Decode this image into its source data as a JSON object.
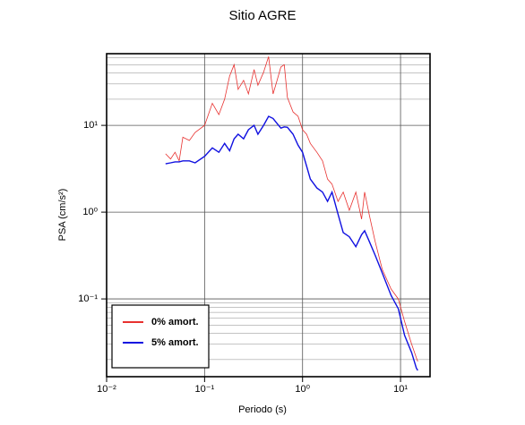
{
  "chart_data": {
    "type": "line",
    "title": "Sitio AGRE",
    "xlabel": "Periodo (s)",
    "ylabel": "PSA (cm/s²)",
    "xscale": "log",
    "yscale": "log",
    "grid": true,
    "legend": "lower left",
    "xlim": [
      0.01,
      20
    ],
    "ylim": [
      0.0127,
      67
    ],
    "xticks": [
      {
        "value": 0.01,
        "label": "10⁻²"
      },
      {
        "value": 0.1,
        "label": "10⁻¹"
      },
      {
        "value": 1,
        "label": "10⁰"
      },
      {
        "value": 10,
        "label": "10¹"
      }
    ],
    "yticks": [
      {
        "value": 0.1,
        "label": "10⁻¹"
      },
      {
        "value": 1,
        "label": "10⁰"
      },
      {
        "value": 10,
        "label": "10¹"
      }
    ],
    "x": [
      0.04,
      0.045,
      0.05,
      0.055,
      0.06,
      0.07,
      0.08,
      0.1,
      0.12,
      0.14,
      0.16,
      0.18,
      0.2,
      0.22,
      0.25,
      0.28,
      0.32,
      0.35,
      0.4,
      0.45,
      0.5,
      0.55,
      0.6,
      0.65,
      0.7,
      0.8,
      0.9,
      1.0,
      1.1,
      1.2,
      1.4,
      1.6,
      1.8,
      2.0,
      2.3,
      2.6,
      3.0,
      3.5,
      4.0,
      4.3,
      4.8,
      5.5,
      6.5,
      8,
      9.5,
      11,
      13,
      14.5,
      15
    ],
    "series": [
      {
        "name": "0% amort.",
        "color": "#e8312f",
        "width": 0.8,
        "values": [
          4.7,
          4.1,
          4.9,
          3.9,
          7.3,
          6.7,
          8.3,
          10,
          18,
          13.3,
          20,
          37,
          50,
          26,
          33,
          23,
          44,
          29,
          41,
          62,
          23,
          33,
          47,
          50,
          21,
          14.3,
          12.7,
          8.9,
          7.9,
          6.2,
          4.9,
          3.9,
          2.4,
          2.1,
          1.33,
          1.7,
          1.05,
          1.7,
          0.83,
          1.7,
          0.93,
          0.46,
          0.22,
          0.13,
          0.1,
          0.055,
          0.03,
          0.021,
          0.019
        ]
      },
      {
        "name": "5% amort.",
        "color": "#1010e0",
        "width": 1.4,
        "values": [
          3.6,
          3.7,
          3.8,
          3.8,
          3.9,
          3.9,
          3.7,
          4.4,
          5.5,
          4.9,
          6.2,
          5.1,
          7,
          7.9,
          7,
          8.9,
          10,
          7.9,
          10,
          12.7,
          12,
          10.5,
          9.3,
          9.6,
          9.5,
          7.9,
          5.9,
          4.9,
          3.4,
          2.4,
          1.9,
          1.7,
          1.33,
          1.7,
          0.95,
          0.58,
          0.52,
          0.4,
          0.55,
          0.61,
          0.46,
          0.32,
          0.2,
          0.11,
          0.077,
          0.038,
          0.024,
          0.016,
          0.015
        ]
      }
    ]
  }
}
